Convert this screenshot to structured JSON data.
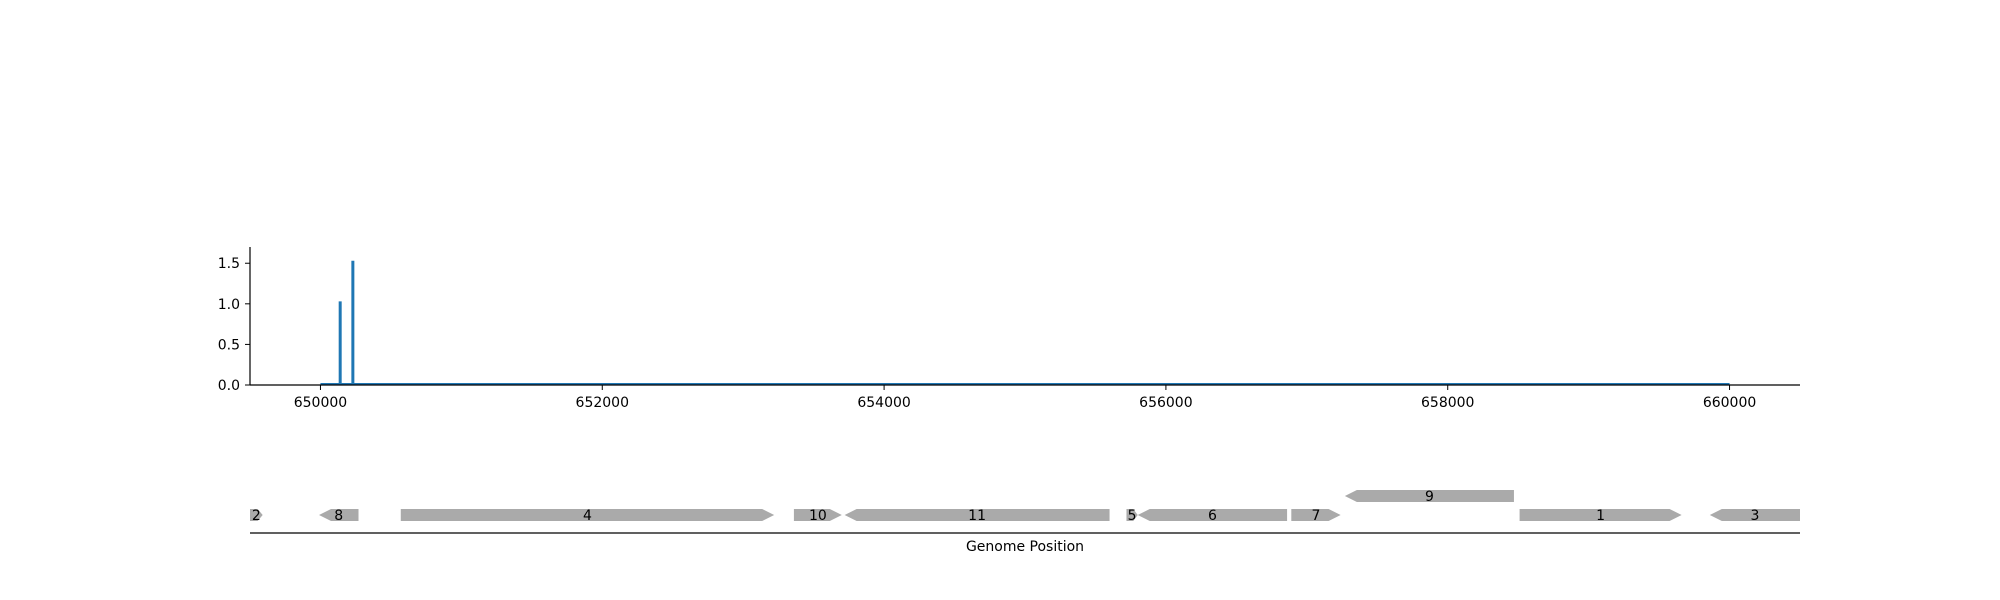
{
  "chart_data": [
    {
      "type": "bar",
      "title": "",
      "xlabel": "",
      "ylabel": "",
      "xlim": [
        649500,
        660500
      ],
      "ylim": [
        0,
        1.7
      ],
      "xticks": [
        650000,
        652000,
        654000,
        656000,
        658000,
        660000
      ],
      "xtick_labels": [
        "650000",
        "652000",
        "654000",
        "656000",
        "658000",
        "660000"
      ],
      "yticks": [
        0.0,
        0.5,
        1.0,
        1.5
      ],
      "ytick_labels": [
        "0.0",
        "0.5",
        "1.0",
        "1.5"
      ],
      "baseline_range": [
        650000,
        660000
      ],
      "series": [
        {
          "color": "#1f77b4",
          "points": [
            {
              "x": 650140,
              "y": 1.03
            },
            {
              "x": 650230,
              "y": 1.53
            }
          ]
        }
      ],
      "grid": false
    },
    {
      "type": "gene-track",
      "xlabel": "Genome Position",
      "xlim": [
        649500,
        660500
      ],
      "feature_color": "#aaaaaa",
      "features": [
        {
          "label": "2",
          "start": 649500,
          "end": 649590,
          "strand": "+",
          "row": 0
        },
        {
          "label": "8",
          "start": 649990,
          "end": 650270,
          "strand": "-",
          "row": 0
        },
        {
          "label": "4",
          "start": 650570,
          "end": 653220,
          "strand": "+",
          "row": 0
        },
        {
          "label": "10",
          "start": 653360,
          "end": 653700,
          "strand": "+",
          "row": 0
        },
        {
          "label": "11",
          "start": 653720,
          "end": 655600,
          "strand": "-",
          "row": 0
        },
        {
          "label": "5",
          "start": 655720,
          "end": 655800,
          "strand": "+",
          "row": 0
        },
        {
          "label": "6",
          "start": 655800,
          "end": 656860,
          "strand": "-",
          "row": 0
        },
        {
          "label": "7",
          "start": 656890,
          "end": 657240,
          "strand": "+",
          "row": 0
        },
        {
          "label": "9",
          "start": 657270,
          "end": 658470,
          "strand": "-",
          "row": 1
        },
        {
          "label": "1",
          "start": 658510,
          "end": 659660,
          "strand": "+",
          "row": 0
        },
        {
          "label": "3",
          "start": 659860,
          "end": 660500,
          "strand": "-",
          "row": 0
        }
      ]
    }
  ]
}
